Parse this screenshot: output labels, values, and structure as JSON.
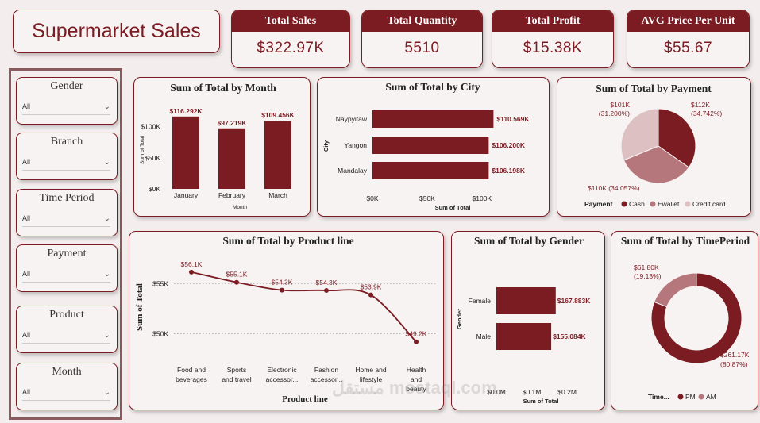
{
  "dashboard": {
    "title": "Supermarket Sales"
  },
  "kpis": [
    {
      "label": "Total Sales",
      "value": "$322.97K"
    },
    {
      "label": "Total Quantity",
      "value": "5510"
    },
    {
      "label": "Total Profit",
      "value": "$15.38K"
    },
    {
      "label": "AVG Price Per Unit",
      "value": "$55.67"
    }
  ],
  "filters": [
    {
      "label": "Gender",
      "value": "All"
    },
    {
      "label": "Branch",
      "value": "All"
    },
    {
      "label": "Time Period",
      "value": "All"
    },
    {
      "label": "Payment",
      "value": "All"
    },
    {
      "label": "Product",
      "value": "All"
    },
    {
      "label": "Month",
      "value": "All"
    }
  ],
  "colors": {
    "primary": "#7b1c22",
    "mid": "#b5777b",
    "light": "#ddc1c2"
  },
  "watermark": "مستقل mostaql.com",
  "chart_data": [
    {
      "id": "month",
      "type": "bar",
      "title": "Sum of Total by Month",
      "xlabel": "Month",
      "ylabel": "Sum of Total",
      "categories": [
        "January",
        "February",
        "March"
      ],
      "values": [
        116292,
        97219,
        109456
      ],
      "data_labels": [
        "$116.292K",
        "$97.219K",
        "$109.456K"
      ],
      "yticks": [
        "$0K",
        "$50K",
        "$100K"
      ],
      "ytick_values": [
        0,
        50000,
        100000
      ],
      "ylim": [
        0,
        125000
      ]
    },
    {
      "id": "city",
      "type": "bar",
      "orientation": "horizontal",
      "title": "Sum of Total by City",
      "xlabel": "Sum of Total",
      "ylabel": "City",
      "categories": [
        "Naypyitaw",
        "Yangon",
        "Mandalay"
      ],
      "values": [
        110569,
        106200,
        106198
      ],
      "data_labels": [
        "$110.569K",
        "$106.200K",
        "$106.198K"
      ],
      "xticks": [
        "$0K",
        "$50K",
        "$100K"
      ],
      "xtick_values": [
        0,
        50000,
        100000
      ],
      "xlim": [
        0,
        111000
      ]
    },
    {
      "id": "payment",
      "type": "pie",
      "title": "Sum of Total by Payment",
      "legend_title": "Payment",
      "categories": [
        "Cash",
        "Ewallet",
        "Credit card"
      ],
      "values": [
        34.742,
        34.057,
        31.2
      ],
      "data_labels": [
        [
          "$112K",
          "(34.742%)"
        ],
        [
          "$110K (34.057%)"
        ],
        [
          "$101K",
          "(31.200%)"
        ]
      ]
    },
    {
      "id": "productline",
      "type": "line",
      "title": "Sum of Total by Product line",
      "xlabel": "Product line",
      "ylabel": "Sum of Total",
      "categories": [
        [
          "Food and",
          "beverages"
        ],
        [
          "Sports",
          "and travel"
        ],
        [
          "Electronic",
          "accessor..."
        ],
        [
          "Fashion",
          "accessor..."
        ],
        [
          "Home and",
          "lifestyle"
        ],
        [
          "Health",
          "and",
          "beauty"
        ]
      ],
      "values": [
        56144,
        55123,
        54338,
        54306,
        53862,
        49193
      ],
      "data_labels": [
        "$56.1K",
        "$55.1K",
        "$54.3K",
        "$54.3K",
        "$53.9K",
        "$49.2K"
      ],
      "yticks": [
        "$50K",
        "$55K"
      ],
      "ytick_values": [
        50000,
        55000
      ],
      "ylim": [
        48300,
        57000
      ]
    },
    {
      "id": "gender",
      "type": "bar",
      "orientation": "horizontal",
      "title": "Sum of Total by Gender",
      "xlabel": "Sum of Total",
      "ylabel": "Gender",
      "categories": [
        "Female",
        "Male"
      ],
      "values": [
        167883,
        155084
      ],
      "data_labels": [
        "$167.883K",
        "$155.084K"
      ],
      "xticks": [
        "$0.0M",
        "$0.1M",
        "$0.2M"
      ],
      "xtick_values": [
        0,
        100000,
        200000
      ],
      "xlim": [
        0,
        202000
      ]
    },
    {
      "id": "timeperiod",
      "type": "pie",
      "donut": true,
      "title": "Sum of Total by TimePeriod",
      "legend_title": "Time...",
      "categories": [
        "PM",
        "AM"
      ],
      "values": [
        80.87,
        19.13
      ],
      "data_labels": [
        [
          "$261.17K",
          "(80.87%)"
        ],
        [
          "$61.80K",
          "(19.13%)"
        ]
      ]
    }
  ]
}
